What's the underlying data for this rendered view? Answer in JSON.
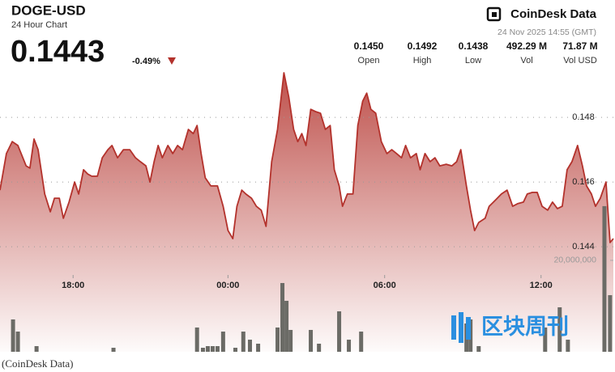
{
  "header": {
    "symbol": "DOGE-USD",
    "subtitle": "24 Hour Chart",
    "price": "0.1443",
    "change": "-0.49%",
    "brand": "CoinDesk Data",
    "timestamp": "24 Nov 2025 14:55 (GMT)"
  },
  "stats": [
    {
      "value": "0.1450",
      "label": "Open"
    },
    {
      "value": "0.1492",
      "label": "High"
    },
    {
      "value": "0.1438",
      "label": "Low"
    },
    {
      "value": "492.29 M",
      "label": "Vol"
    },
    {
      "value": "71.87 M",
      "label": "Vol USD"
    }
  ],
  "watermark": "区块周刊",
  "caption": "(CoinDesk Data)",
  "chart_data": {
    "type": "line",
    "color": "#b3322c",
    "grid": true,
    "x": [
      0,
      0.25,
      0.48,
      0.7,
      1.02,
      1.17,
      1.33,
      1.49,
      1.75,
      1.97,
      2.13,
      2.32,
      2.48,
      2.7,
      2.92,
      3.08,
      3.27,
      3.43,
      3.59,
      3.81,
      4.0,
      4.22,
      4.38,
      4.6,
      4.83,
      5.08,
      5.3,
      5.49,
      5.71,
      5.87,
      6.03,
      6.19,
      6.35,
      6.57,
      6.76,
      6.95,
      7.14,
      7.37,
      7.56,
      7.71,
      7.87,
      8.03,
      8.25,
      8.51,
      8.73,
      8.92,
      9.11,
      9.27,
      9.46,
      9.62,
      9.84,
      10.03,
      10.22,
      10.41,
      10.63,
      10.86,
      11.11,
      11.3,
      11.49,
      11.65,
      11.81,
      11.97,
      12.16,
      12.35,
      12.54,
      12.73,
      12.92,
      13.08,
      13.27,
      13.4,
      13.59,
      13.81,
      14.0,
      14.19,
      14.35,
      14.51,
      14.7,
      14.92,
      15.14,
      15.33,
      15.52,
      15.71,
      15.87,
      16.06,
      16.29,
      16.44,
      16.63,
      16.83,
      17.02,
      17.21,
      17.46,
      17.68,
      17.87,
      18.03,
      18.25,
      18.41,
      18.57,
      18.73,
      18.98,
      19.14,
      19.37,
      19.62,
      19.84,
      20.06,
      20.25,
      20.48,
      20.63,
      20.83,
      21.02,
      21.21,
      21.43,
      21.62,
      21.81,
      22.0,
      22.19,
      22.38,
      22.6,
      22.79,
      22.95,
      23.14,
      23.3,
      23.49,
      23.71,
      23.87,
      24
    ],
    "values": [
      0.14575,
      0.14688,
      0.14725,
      0.14713,
      0.1465,
      0.14643,
      0.14733,
      0.147,
      0.14563,
      0.14508,
      0.1455,
      0.1455,
      0.14488,
      0.14538,
      0.146,
      0.14563,
      0.14638,
      0.14625,
      0.14618,
      0.14618,
      0.14675,
      0.147,
      0.14713,
      0.14675,
      0.147,
      0.147,
      0.14675,
      0.14663,
      0.1465,
      0.146,
      0.14663,
      0.14713,
      0.14675,
      0.14713,
      0.14688,
      0.14713,
      0.147,
      0.14763,
      0.1475,
      0.14775,
      0.14688,
      0.14613,
      0.14588,
      0.14588,
      0.14525,
      0.1445,
      0.14425,
      0.14525,
      0.14575,
      0.14563,
      0.1455,
      0.14525,
      0.14513,
      0.14463,
      0.14663,
      0.14763,
      0.14938,
      0.14863,
      0.14763,
      0.14725,
      0.1475,
      0.14713,
      0.14825,
      0.14818,
      0.14813,
      0.14763,
      0.14775,
      0.14638,
      0.14588,
      0.14525,
      0.14563,
      0.14563,
      0.14775,
      0.1485,
      0.14875,
      0.14825,
      0.14813,
      0.14725,
      0.14688,
      0.147,
      0.14688,
      0.14675,
      0.14713,
      0.14675,
      0.14688,
      0.14638,
      0.14688,
      0.14663,
      0.14675,
      0.1465,
      0.14655,
      0.1465,
      0.14663,
      0.147,
      0.14588,
      0.14513,
      0.1445,
      0.14475,
      0.14488,
      0.14525,
      0.14543,
      0.14563,
      0.14575,
      0.14525,
      0.14533,
      0.14538,
      0.14563,
      0.14568,
      0.14568,
      0.14525,
      0.14513,
      0.14538,
      0.14518,
      0.14525,
      0.14638,
      0.14663,
      0.14713,
      0.1465,
      0.14588,
      0.14563,
      0.14525,
      0.1455,
      0.146,
      0.14413,
      0.14425
    ],
    "volume_x": [
      0.51,
      0.7,
      1.43,
      4.44,
      7.71,
      7.94,
      8.13,
      8.32,
      8.51,
      8.73,
      9.21,
      9.52,
      9.78,
      10.1,
      10.86,
      11.05,
      11.21,
      11.37,
      12.16,
      12.48,
      13.27,
      13.65,
      14.13,
      18.25,
      18.41,
      18.73,
      21.33,
      21.9,
      22.22,
      23.65,
      23.87
    ],
    "volume_values": [
      7080000,
      4420000,
      1240000,
      880000,
      5310000,
      880000,
      1240000,
      1240000,
      1240000,
      4420000,
      880000,
      4420000,
      2650000,
      1770000,
      5310000,
      15040000,
      11150000,
      4780000,
      4780000,
      1770000,
      8850000,
      2650000,
      4420000,
      6190000,
      7080000,
      1240000,
      5310000,
      9730000,
      2650000,
      31860000,
      12390000
    ],
    "volume_color": "#6b6b66",
    "xlim": [
      0,
      24
    ],
    "xticks": [
      {
        "value": 2.86,
        "label": "18:00"
      },
      {
        "value": 8.92,
        "label": "00:00"
      },
      {
        "value": 15.05,
        "label": "06:00"
      },
      {
        "value": 21.17,
        "label": "12:00"
      }
    ],
    "ylim": [
      0.14075,
      0.14963
    ],
    "yticks": [
      0.144,
      0.146,
      0.148
    ],
    "y2lim": [
      0,
      62800000
    ],
    "y2ticks": [
      {
        "value": 20000000,
        "label": "20,000,000"
      }
    ]
  }
}
